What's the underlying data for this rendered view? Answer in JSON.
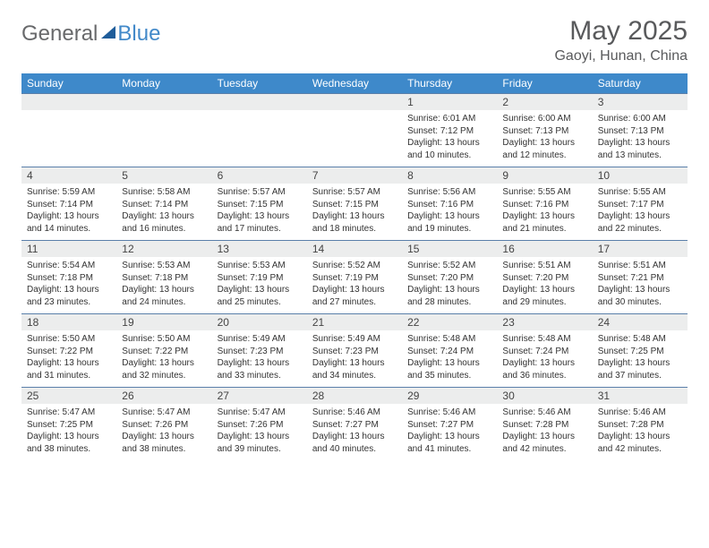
{
  "logo": {
    "word1": "General",
    "word2": "Blue"
  },
  "title": "May 2025",
  "location": "Gaoyi, Hunan, China",
  "colors": {
    "header_bg": "#3e89ca",
    "header_text": "#ffffff",
    "daynum_bg": "#eceded",
    "row_border": "#5a7faa",
    "logo_gray": "#68696b",
    "logo_blue": "#4289c9",
    "logo_triangle": "#1f5d9a",
    "text": "#333333"
  },
  "weekdays": [
    "Sunday",
    "Monday",
    "Tuesday",
    "Wednesday",
    "Thursday",
    "Friday",
    "Saturday"
  ],
  "weeks": [
    [
      null,
      null,
      null,
      null,
      {
        "n": "1",
        "sr": "6:01 AM",
        "ss": "7:12 PM",
        "dl": "13 hours and 10 minutes."
      },
      {
        "n": "2",
        "sr": "6:00 AM",
        "ss": "7:13 PM",
        "dl": "13 hours and 12 minutes."
      },
      {
        "n": "3",
        "sr": "6:00 AM",
        "ss": "7:13 PM",
        "dl": "13 hours and 13 minutes."
      }
    ],
    [
      {
        "n": "4",
        "sr": "5:59 AM",
        "ss": "7:14 PM",
        "dl": "13 hours and 14 minutes."
      },
      {
        "n": "5",
        "sr": "5:58 AM",
        "ss": "7:14 PM",
        "dl": "13 hours and 16 minutes."
      },
      {
        "n": "6",
        "sr": "5:57 AM",
        "ss": "7:15 PM",
        "dl": "13 hours and 17 minutes."
      },
      {
        "n": "7",
        "sr": "5:57 AM",
        "ss": "7:15 PM",
        "dl": "13 hours and 18 minutes."
      },
      {
        "n": "8",
        "sr": "5:56 AM",
        "ss": "7:16 PM",
        "dl": "13 hours and 19 minutes."
      },
      {
        "n": "9",
        "sr": "5:55 AM",
        "ss": "7:16 PM",
        "dl": "13 hours and 21 minutes."
      },
      {
        "n": "10",
        "sr": "5:55 AM",
        "ss": "7:17 PM",
        "dl": "13 hours and 22 minutes."
      }
    ],
    [
      {
        "n": "11",
        "sr": "5:54 AM",
        "ss": "7:18 PM",
        "dl": "13 hours and 23 minutes."
      },
      {
        "n": "12",
        "sr": "5:53 AM",
        "ss": "7:18 PM",
        "dl": "13 hours and 24 minutes."
      },
      {
        "n": "13",
        "sr": "5:53 AM",
        "ss": "7:19 PM",
        "dl": "13 hours and 25 minutes."
      },
      {
        "n": "14",
        "sr": "5:52 AM",
        "ss": "7:19 PM",
        "dl": "13 hours and 27 minutes."
      },
      {
        "n": "15",
        "sr": "5:52 AM",
        "ss": "7:20 PM",
        "dl": "13 hours and 28 minutes."
      },
      {
        "n": "16",
        "sr": "5:51 AM",
        "ss": "7:20 PM",
        "dl": "13 hours and 29 minutes."
      },
      {
        "n": "17",
        "sr": "5:51 AM",
        "ss": "7:21 PM",
        "dl": "13 hours and 30 minutes."
      }
    ],
    [
      {
        "n": "18",
        "sr": "5:50 AM",
        "ss": "7:22 PM",
        "dl": "13 hours and 31 minutes."
      },
      {
        "n": "19",
        "sr": "5:50 AM",
        "ss": "7:22 PM",
        "dl": "13 hours and 32 minutes."
      },
      {
        "n": "20",
        "sr": "5:49 AM",
        "ss": "7:23 PM",
        "dl": "13 hours and 33 minutes."
      },
      {
        "n": "21",
        "sr": "5:49 AM",
        "ss": "7:23 PM",
        "dl": "13 hours and 34 minutes."
      },
      {
        "n": "22",
        "sr": "5:48 AM",
        "ss": "7:24 PM",
        "dl": "13 hours and 35 minutes."
      },
      {
        "n": "23",
        "sr": "5:48 AM",
        "ss": "7:24 PM",
        "dl": "13 hours and 36 minutes."
      },
      {
        "n": "24",
        "sr": "5:48 AM",
        "ss": "7:25 PM",
        "dl": "13 hours and 37 minutes."
      }
    ],
    [
      {
        "n": "25",
        "sr": "5:47 AM",
        "ss": "7:25 PM",
        "dl": "13 hours and 38 minutes."
      },
      {
        "n": "26",
        "sr": "5:47 AM",
        "ss": "7:26 PM",
        "dl": "13 hours and 38 minutes."
      },
      {
        "n": "27",
        "sr": "5:47 AM",
        "ss": "7:26 PM",
        "dl": "13 hours and 39 minutes."
      },
      {
        "n": "28",
        "sr": "5:46 AM",
        "ss": "7:27 PM",
        "dl": "13 hours and 40 minutes."
      },
      {
        "n": "29",
        "sr": "5:46 AM",
        "ss": "7:27 PM",
        "dl": "13 hours and 41 minutes."
      },
      {
        "n": "30",
        "sr": "5:46 AM",
        "ss": "7:28 PM",
        "dl": "13 hours and 42 minutes."
      },
      {
        "n": "31",
        "sr": "5:46 AM",
        "ss": "7:28 PM",
        "dl": "13 hours and 42 minutes."
      }
    ]
  ],
  "labels": {
    "sunrise": "Sunrise:",
    "sunset": "Sunset:",
    "daylight": "Daylight:"
  }
}
